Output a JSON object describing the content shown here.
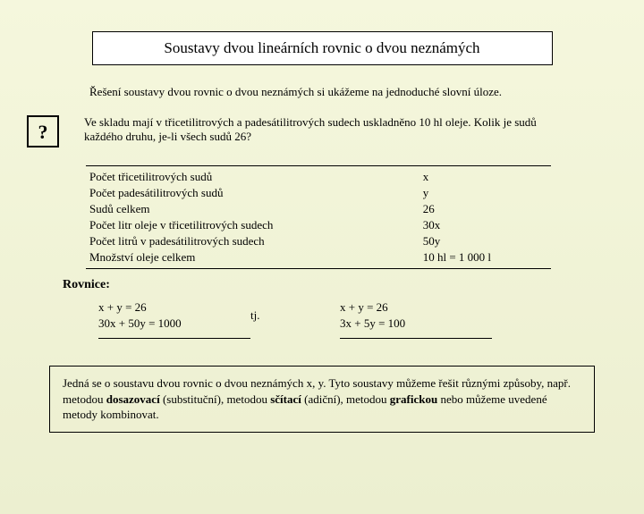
{
  "title": "Soustavy dvou lineárních rovnic o dvou neznámých",
  "intro": "Řešení soustavy dvou rovnic o dvou neznámých si ukážeme na jednoduché slovní úloze.",
  "qmark": "?",
  "question": "Ve skladu mají v třicetilitrových a padesátilitrových sudech uskladněno 10 hl oleje. Kolik je sudů každého druhu, je-li všech sudů 26?",
  "table": {
    "rows": [
      {
        "label": "Počet třicetilitrových sudů",
        "value": "x"
      },
      {
        "label": "Počet padesátilitrových sudů",
        "value": "y"
      },
      {
        "label": "Sudů celkem",
        "value": "26"
      },
      {
        "label": "Počet litr oleje v třicetilitrových sudech",
        "value": "30x"
      },
      {
        "label": "Počet litrů v padesátilitrových sudech",
        "value": "50y"
      },
      {
        "label": "Množství oleje celkem",
        "value": "10 hl = 1 000 l"
      }
    ]
  },
  "rovnice_label": "Rovnice:",
  "equations": {
    "left": [
      "x + y = 26",
      "30x + 50y = 1000"
    ],
    "mid": "tj.",
    "right": [
      "x + y = 26",
      "3x + 5y = 100"
    ]
  },
  "summary": {
    "p1a": "Jedná se o soustavu dvou rovnic o dvou neznámých x, y. Tyto soustavy můžeme řešit různými způsoby, např. metodou ",
    "b1": "dosazovací",
    "p1b": " (substituční), metodou ",
    "b2": "sčítací",
    "p1c": " (adiční), metodou ",
    "b3": "grafickou",
    "p1d": " nebo můžeme uvedené metody kombinovat."
  },
  "colors": {
    "bg_top": "#f5f7dd",
    "bg_bottom": "#ecefd0",
    "border": "#000000",
    "text": "#000000",
    "box_bg": "#ffffff"
  }
}
